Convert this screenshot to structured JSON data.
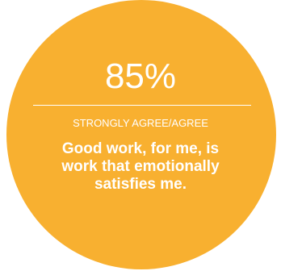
{
  "stat": {
    "percent": "85%",
    "label": "STRONGLY AGREE/AGREE",
    "statement": "Good work, for me, is work that emotionally satisfies me."
  },
  "colors": {
    "circle": "#F8B030",
    "text": "#FFFFFF"
  }
}
